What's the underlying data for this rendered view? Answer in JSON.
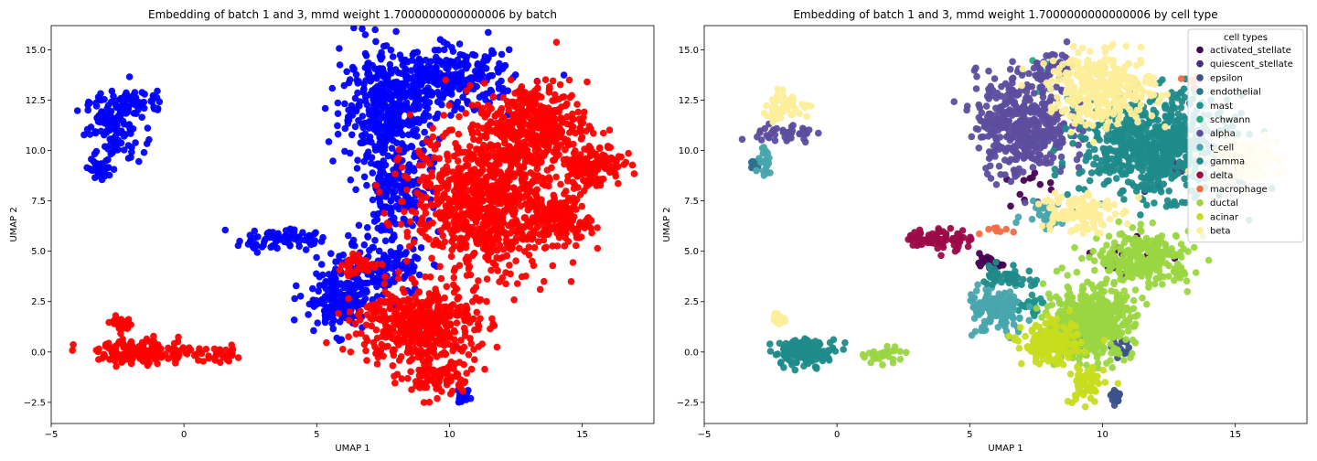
{
  "chart_data": [
    {
      "type": "scatter",
      "title": "Embedding of batch 1 and 3, mmd weight 1.7000000000000006 by batch",
      "xlabel": "UMAP 1",
      "ylabel": "UMAP 2",
      "xlim": [
        -5,
        17.7
      ],
      "ylim": [
        -3.55,
        16.2
      ],
      "xticks": [
        -5,
        0,
        5,
        10,
        15
      ],
      "yticks": [
        -2.5,
        0.0,
        2.5,
        5.0,
        7.5,
        10.0,
        12.5,
        15.0
      ],
      "grid": false,
      "legend": "none",
      "series": [
        {
          "color": "#0000ff",
          "clusters": [
            {
              "cx": -2.6,
              "cy": 11.2,
              "rx": 1.0,
              "ry": 1.5,
              "n": 130
            },
            {
              "cx": -1.7,
              "cy": 12.4,
              "rx": 0.9,
              "ry": 0.5,
              "n": 45
            },
            {
              "cx": -3.1,
              "cy": 9.2,
              "rx": 0.5,
              "ry": 0.6,
              "n": 35
            },
            {
              "cx": 3.5,
              "cy": 5.6,
              "rx": 1.3,
              "ry": 0.5,
              "n": 75
            },
            {
              "cx": 5.8,
              "cy": 2.6,
              "rx": 1.2,
              "ry": 1.4,
              "n": 190
            },
            {
              "cx": 7.5,
              "cy": 4.2,
              "rx": 1.4,
              "ry": 1.3,
              "n": 140
            },
            {
              "cx": 7.7,
              "cy": 12.0,
              "rx": 1.6,
              "ry": 2.6,
              "n": 430
            },
            {
              "cx": 10.0,
              "cy": 13.5,
              "rx": 2.2,
              "ry": 1.3,
              "n": 280
            },
            {
              "cx": 8.0,
              "cy": 7.8,
              "rx": 1.2,
              "ry": 1.6,
              "n": 170
            },
            {
              "cx": 10.5,
              "cy": -2.2,
              "rx": 0.25,
              "ry": 0.35,
              "n": 25
            }
          ]
        },
        {
          "color": "#ff0000",
          "clusters": [
            {
              "cx": -1.5,
              "cy": 0.0,
              "rx": 1.6,
              "ry": 0.55,
              "n": 160
            },
            {
              "cx": -2.3,
              "cy": 1.4,
              "rx": 0.45,
              "ry": 0.3,
              "n": 22
            },
            {
              "cx": 1.4,
              "cy": -0.2,
              "rx": 0.8,
              "ry": 0.4,
              "n": 30
            },
            {
              "cx": 6.6,
              "cy": 4.3,
              "rx": 0.9,
              "ry": 0.4,
              "n": 40
            },
            {
              "cx": 8.8,
              "cy": 1.4,
              "rx": 2.0,
              "ry": 1.8,
              "n": 480
            },
            {
              "cx": 9.5,
              "cy": -1.3,
              "rx": 1.2,
              "ry": 0.9,
              "n": 80
            },
            {
              "cx": 11.4,
              "cy": 7.6,
              "rx": 2.5,
              "ry": 3.3,
              "n": 900
            },
            {
              "cx": 13.2,
              "cy": 11.3,
              "rx": 1.8,
              "ry": 1.9,
              "n": 350
            },
            {
              "cx": 15.3,
              "cy": 9.3,
              "rx": 1.1,
              "ry": 1.0,
              "n": 140
            },
            {
              "cx": 14.2,
              "cy": 6.5,
              "rx": 1.0,
              "ry": 1.0,
              "n": 120
            }
          ]
        }
      ]
    },
    {
      "type": "scatter",
      "title": "Embedding of batch 1 and 3, mmd weight 1.7000000000000006 by cell type",
      "xlabel": "UMAP 1",
      "ylabel": "UMAP 2",
      "xlim": [
        -5,
        17.7
      ],
      "ylim": [
        -3.55,
        16.2
      ],
      "xticks": [
        -5,
        0,
        5,
        10,
        15
      ],
      "yticks": [
        -2.5,
        0.0,
        2.5,
        5.0,
        7.5,
        10.0,
        12.5,
        15.0
      ],
      "grid": false,
      "legend": "top-right",
      "legend_title": "cell types",
      "series": [
        {
          "name": "activated_stellate",
          "color": "#440154",
          "clusters": [
            {
              "cx": 5.8,
              "cy": 4.4,
              "rx": 0.4,
              "ry": 0.25,
              "n": 30
            },
            {
              "cx": 7.3,
              "cy": 8.0,
              "rx": 1.0,
              "ry": 1.0,
              "n": 12
            },
            {
              "cx": 10.4,
              "cy": 5.0,
              "rx": 1.5,
              "ry": 1.5,
              "n": 12
            }
          ]
        },
        {
          "name": "quiescent_stellate",
          "color": "#472d7b",
          "clusters": [
            {
              "cx": 12.0,
              "cy": 9.0,
              "rx": 1.5,
              "ry": 1.5,
              "n": 10
            }
          ]
        },
        {
          "name": "epsilon",
          "color": "#3b528b",
          "clusters": [
            {
              "cx": 8.5,
              "cy": 1.0,
              "rx": 0.7,
              "ry": 0.8,
              "n": 50
            },
            {
              "cx": 10.5,
              "cy": -2.2,
              "rx": 0.25,
              "ry": 0.35,
              "n": 22
            },
            {
              "cx": 10.7,
              "cy": 0.3,
              "rx": 0.3,
              "ry": 0.5,
              "n": 15
            }
          ]
        },
        {
          "name": "endothelial",
          "color": "#2c728e",
          "clusters": [
            {
              "cx": -3.1,
              "cy": 9.3,
              "rx": 0.3,
              "ry": 0.3,
              "n": 12
            }
          ]
        },
        {
          "name": "mast",
          "color": "#21918c",
          "clusters": [
            {
              "cx": 7.2,
              "cy": 2.3,
              "rx": 0.6,
              "ry": 0.5,
              "n": 25
            }
          ]
        },
        {
          "name": "schwann",
          "color": "#27ad81",
          "clusters": [
            {
              "cx": 7.9,
              "cy": 13.5,
              "rx": 0.9,
              "ry": 1.0,
              "n": 15
            }
          ]
        },
        {
          "name": "alpha",
          "color": "#5c4d9e",
          "clusters": [
            {
              "cx": 7.0,
              "cy": 11.3,
              "rx": 1.6,
              "ry": 2.3,
              "n": 420
            },
            {
              "cx": -2.0,
              "cy": 10.8,
              "rx": 1.0,
              "ry": 0.5,
              "n": 40
            },
            {
              "cx": 8.3,
              "cy": 14.2,
              "rx": 0.8,
              "ry": 0.8,
              "n": 40
            }
          ]
        },
        {
          "name": "t_cell",
          "color": "#48a5ac",
          "clusters": [
            {
              "cx": -2.7,
              "cy": 9.3,
              "rx": 0.3,
              "ry": 0.6,
              "n": 25
            },
            {
              "cx": 6.0,
              "cy": 2.0,
              "rx": 1.0,
              "ry": 1.2,
              "n": 130
            },
            {
              "cx": 7.8,
              "cy": 6.8,
              "rx": 0.7,
              "ry": 0.6,
              "n": 30
            }
          ]
        },
        {
          "name": "gamma",
          "color": "#1f8a8a",
          "clusters": [
            {
              "cx": 12.0,
              "cy": 10.2,
              "rx": 2.5,
              "ry": 2.2,
              "n": 700
            },
            {
              "cx": -1.2,
              "cy": 0.0,
              "rx": 1.1,
              "ry": 0.6,
              "n": 120
            },
            {
              "cx": 6.4,
              "cy": 3.8,
              "rx": 0.9,
              "ry": 0.5,
              "n": 40
            }
          ]
        },
        {
          "name": "delta",
          "color": "#9c0a48",
          "clusters": [
            {
              "cx": 3.8,
              "cy": 5.6,
              "rx": 1.1,
              "ry": 0.5,
              "n": 80
            }
          ]
        },
        {
          "name": "macrophage",
          "color": "#f46d43",
          "clusters": [
            {
              "cx": 13.5,
              "cy": 13.5,
              "rx": 0.4,
              "ry": 0.4,
              "n": 8
            },
            {
              "cx": 6.0,
              "cy": 6.0,
              "rx": 0.5,
              "ry": 0.3,
              "n": 8
            }
          ]
        },
        {
          "name": "ductal",
          "color": "#9ad641",
          "clusters": [
            {
              "cx": 9.5,
              "cy": 1.5,
              "rx": 1.5,
              "ry": 1.6,
              "n": 450
            },
            {
              "cx": 11.6,
              "cy": 4.6,
              "rx": 1.6,
              "ry": 1.2,
              "n": 250
            },
            {
              "cx": 1.7,
              "cy": -0.1,
              "rx": 0.8,
              "ry": 0.4,
              "n": 30
            }
          ]
        },
        {
          "name": "acinar",
          "color": "#c7dc1f",
          "clusters": [
            {
              "cx": 8.1,
              "cy": 0.4,
              "rx": 1.0,
              "ry": 0.9,
              "n": 180
            },
            {
              "cx": 9.4,
              "cy": -1.6,
              "rx": 0.6,
              "ry": 0.9,
              "n": 60
            }
          ]
        },
        {
          "name": "beta",
          "color": "#fdee9a",
          "clusters": [
            {
              "cx": 10.0,
              "cy": 13.0,
              "rx": 1.8,
              "ry": 1.6,
              "n": 320
            },
            {
              "cx": -2.0,
              "cy": 12.2,
              "rx": 0.9,
              "ry": 0.6,
              "n": 50
            },
            {
              "cx": 15.3,
              "cy": 9.5,
              "rx": 1.2,
              "ry": 1.0,
              "n": 120
            },
            {
              "cx": 9.0,
              "cy": 7.0,
              "rx": 1.3,
              "ry": 1.0,
              "n": 120
            },
            {
              "cx": -2.2,
              "cy": 1.6,
              "rx": 0.4,
              "ry": 0.25,
              "n": 18
            }
          ]
        }
      ]
    }
  ]
}
